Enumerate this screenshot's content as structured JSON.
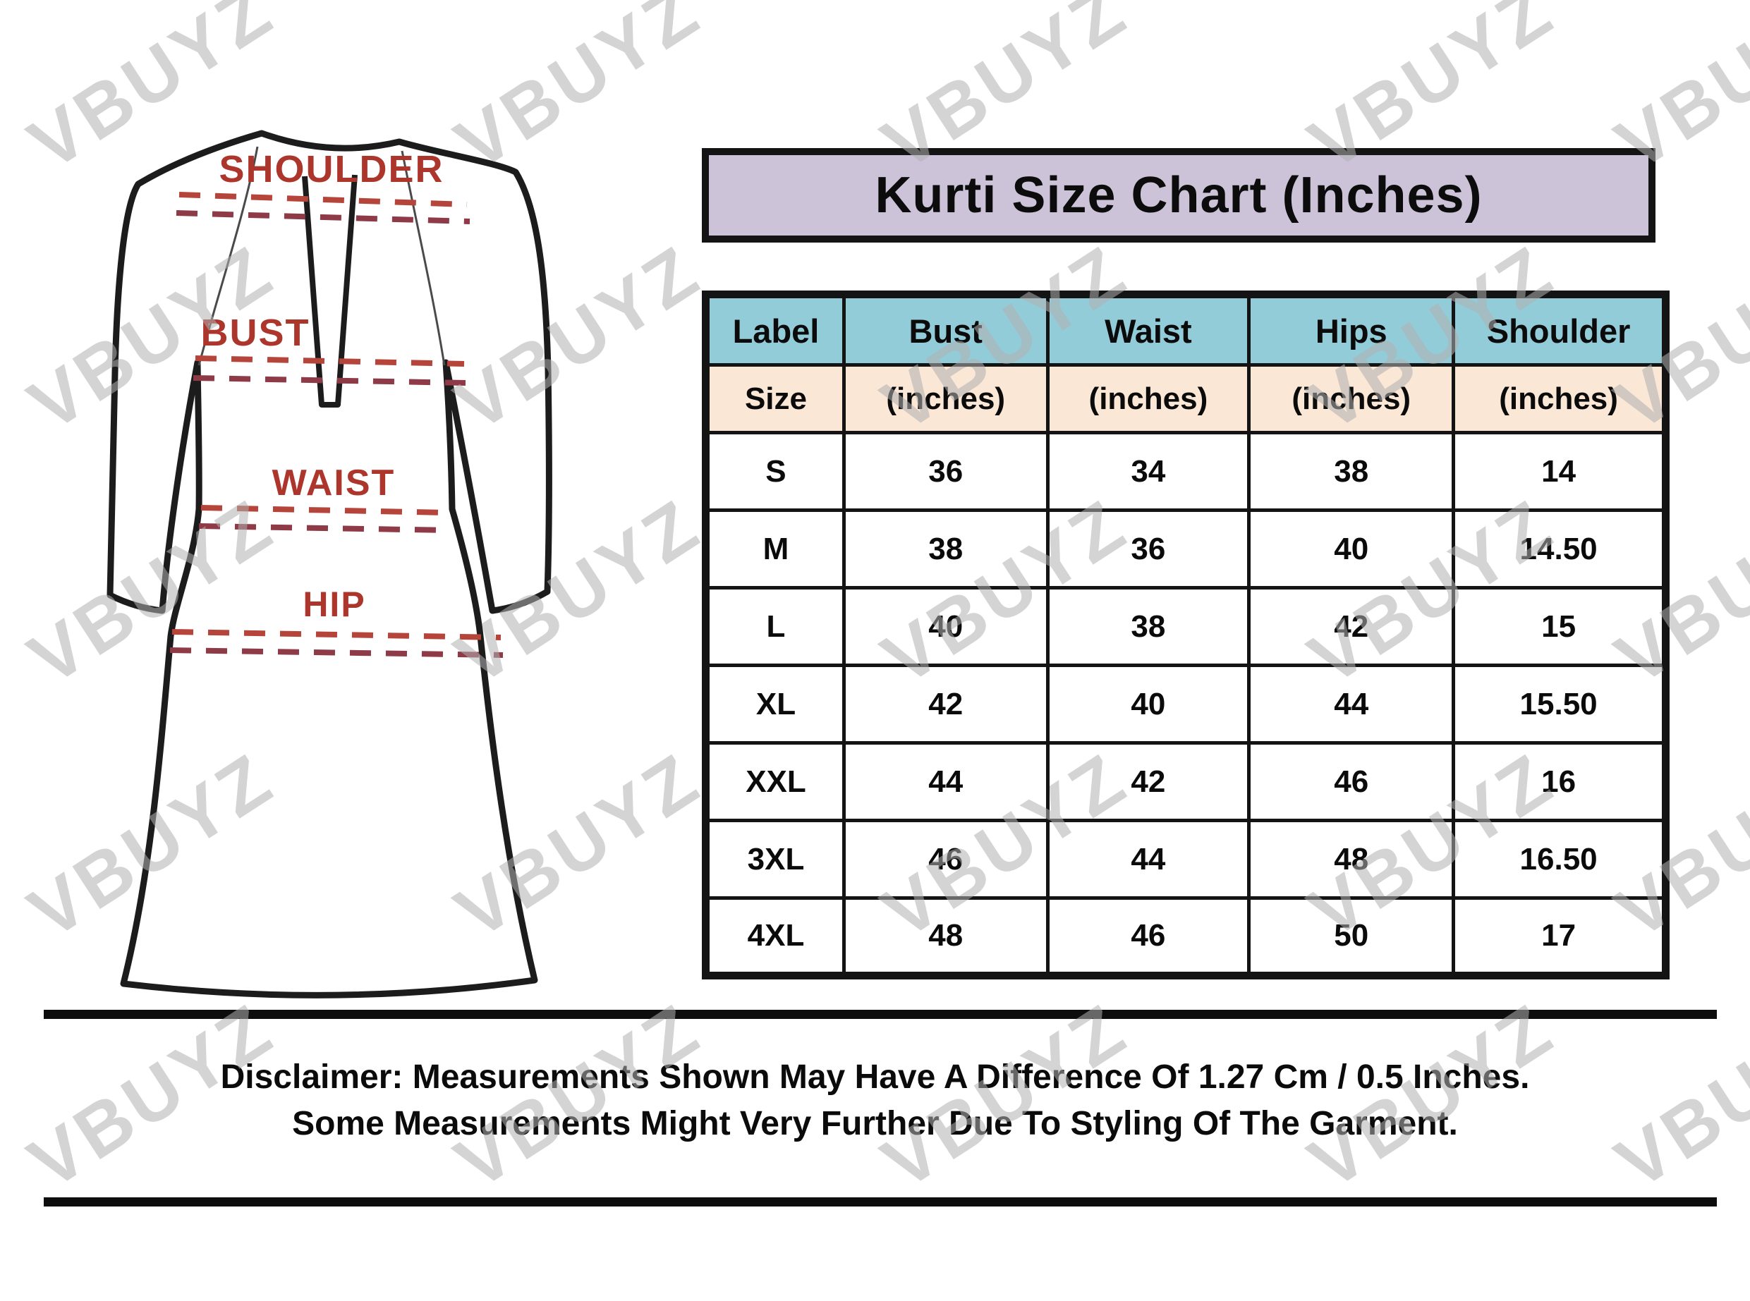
{
  "title": "Kurti Size Chart (Inches)",
  "watermark": {
    "text": "VBUYZ"
  },
  "diagram": {
    "labels": [
      "SHOULDER",
      "BUST",
      "WAIST",
      "HIP"
    ]
  },
  "table": {
    "header": [
      "Label",
      "Bust",
      "Waist",
      "Hips",
      "Shoulder"
    ],
    "subheader": [
      "Size",
      "(inches)",
      "(inches)",
      "(inches)",
      "(inches)"
    ],
    "rows": [
      [
        "S",
        "36",
        "34",
        "38",
        "14"
      ],
      [
        "M",
        "38",
        "36",
        "40",
        "14.50"
      ],
      [
        "L",
        "40",
        "38",
        "42",
        "15"
      ],
      [
        "XL",
        "42",
        "40",
        "44",
        "15.50"
      ],
      [
        "XXL",
        "44",
        "42",
        "46",
        "16"
      ],
      [
        "3XL",
        "46",
        "44",
        "48",
        "16.50"
      ],
      [
        "4XL",
        "48",
        "46",
        "50",
        "17"
      ]
    ]
  },
  "disclaimer": {
    "line1": "Disclaimer: Measurements Shown May Have A Difference Of 1.27 Cm / 0.5 Inches.",
    "line2": "Some Measurements Might Very Further Due To Styling Of The Garment."
  },
  "colors": {
    "title_bg": "#cdc3d8",
    "header_bg": "#93ccd9",
    "subheader_bg": "#fae7d6",
    "border_color": "#141414",
    "label_red": "#ac352c",
    "dash_red": "#b5443b",
    "dash_maroon": "#8e3a47",
    "watermark_gray": "#b1b1b1"
  },
  "chart_data": {
    "type": "table",
    "title": "Kurti Size Chart (Inches)",
    "columns": [
      "Label Size",
      "Bust (inches)",
      "Waist (inches)",
      "Hips (inches)",
      "Shoulder (inches)"
    ],
    "rows": [
      [
        "S",
        36,
        34,
        38,
        14
      ],
      [
        "M",
        38,
        36,
        40,
        14.5
      ],
      [
        "L",
        40,
        38,
        42,
        15
      ],
      [
        "XL",
        42,
        40,
        44,
        15.5
      ],
      [
        "XXL",
        44,
        42,
        46,
        16
      ],
      [
        "3XL",
        46,
        44,
        48,
        16.5
      ],
      [
        "4XL",
        48,
        46,
        50,
        17
      ]
    ],
    "notes": "Measurement bands marked on garment: Shoulder, Bust, Waist, Hip"
  }
}
